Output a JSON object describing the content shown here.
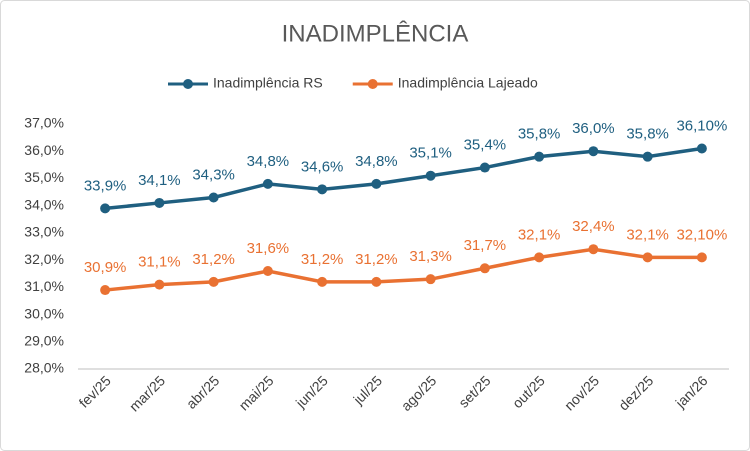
{
  "chart_data": {
    "type": "line",
    "title": "INADIMPLÊNCIA",
    "categories": [
      "fev/25",
      "mar/25",
      "abr/25",
      "mai/25",
      "jun/25",
      "jul/25",
      "ago/25",
      "set/25",
      "out/25",
      "nov/25",
      "dez/25",
      "jan/26"
    ],
    "series": [
      {
        "name": "Inadimplência RS",
        "color": "#1f5f80",
        "values": [
          33.9,
          34.1,
          34.3,
          34.8,
          34.6,
          34.8,
          35.1,
          35.4,
          35.8,
          36.0,
          35.8,
          36.1
        ],
        "value_labels": [
          "33,9%",
          "34,1%",
          "34,3%",
          "34,8%",
          "34,6%",
          "34,8%",
          "35,1%",
          "35,4%",
          "35,8%",
          "36,0%",
          "35,8%",
          "36,10%"
        ]
      },
      {
        "name": "Inadimplência Lajeado",
        "color": "#e97132",
        "values": [
          30.9,
          31.1,
          31.2,
          31.6,
          31.2,
          31.2,
          31.3,
          31.7,
          32.1,
          32.4,
          32.1,
          32.1
        ],
        "value_labels": [
          "30,9%",
          "31,1%",
          "31,2%",
          "31,6%",
          "31,2%",
          "31,2%",
          "31,3%",
          "31,7%",
          "32,1%",
          "32,4%",
          "32,1%",
          "32,10%"
        ]
      }
    ],
    "ylim": [
      28,
      37
    ],
    "yticks": [
      {
        "value": 28,
        "label": "28,0%"
      },
      {
        "value": 29,
        "label": "29,0%"
      },
      {
        "value": 30,
        "label": "30,0%"
      },
      {
        "value": 31,
        "label": "31,0%"
      },
      {
        "value": 32,
        "label": "32,0%"
      },
      {
        "value": 33,
        "label": "33,0%"
      },
      {
        "value": 34,
        "label": "34,0%"
      },
      {
        "value": 35,
        "label": "35,0%"
      },
      {
        "value": 36,
        "label": "36,0%"
      },
      {
        "value": 37,
        "label": "37,0%"
      }
    ],
    "grid": false,
    "legend": "top"
  }
}
